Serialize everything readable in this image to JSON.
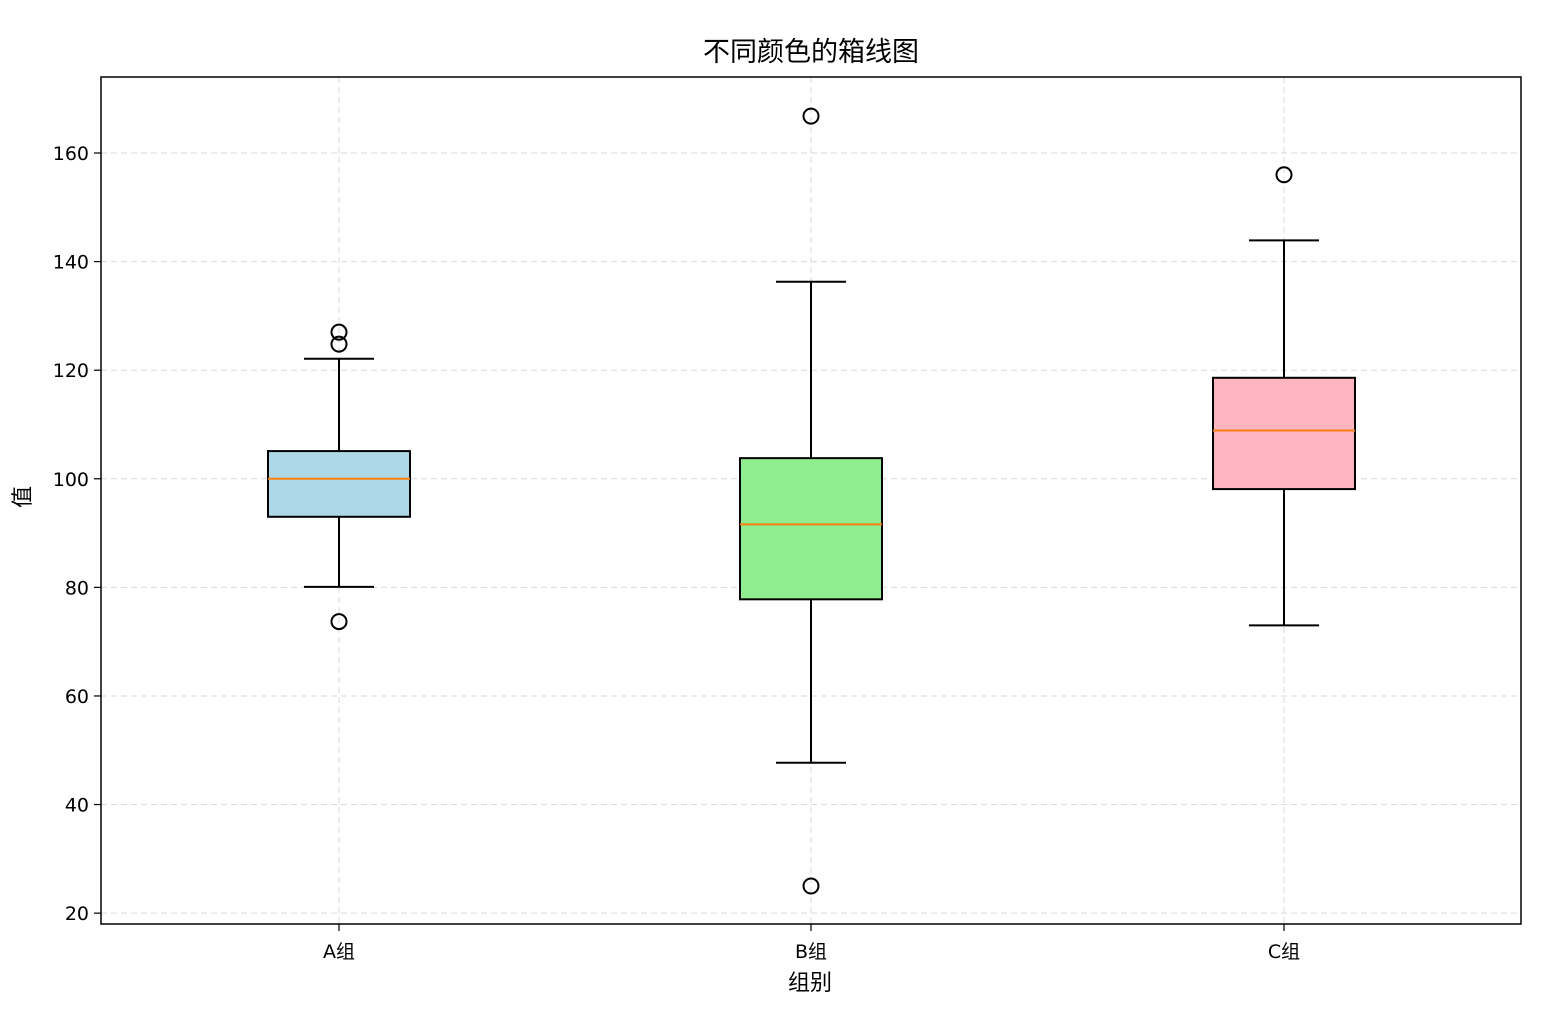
{
  "chart_data": {
    "type": "box",
    "title": "不同颜色的箱线图",
    "xlabel": "组别",
    "ylabel": "值",
    "ylim": [
      18,
      174
    ],
    "yticks": [
      20,
      40,
      60,
      80,
      100,
      120,
      140,
      160
    ],
    "grid": true,
    "categories": [
      "A组",
      "B组",
      "C组"
    ],
    "boxes": [
      {
        "category": "A组",
        "color": "#add8e6",
        "whisker_low": 80.1,
        "q1": 93.0,
        "median": 100.0,
        "q3": 105.1,
        "whisker_high": 122.1,
        "outliers": [
          127.0,
          124.8,
          73.7
        ]
      },
      {
        "category": "B组",
        "color": "#90ee90",
        "whisker_low": 47.7,
        "q1": 77.8,
        "median": 91.6,
        "q3": 103.8,
        "whisker_high": 136.3,
        "outliers": [
          166.8,
          25.0
        ]
      },
      {
        "category": "C组",
        "color": "#ffb6c1",
        "whisker_low": 73.0,
        "q1": 98.1,
        "median": 108.9,
        "q3": 118.6,
        "whisker_high": 143.9,
        "outliers": [
          156.0
        ]
      }
    ],
    "median_color": "#ff7f0e"
  }
}
